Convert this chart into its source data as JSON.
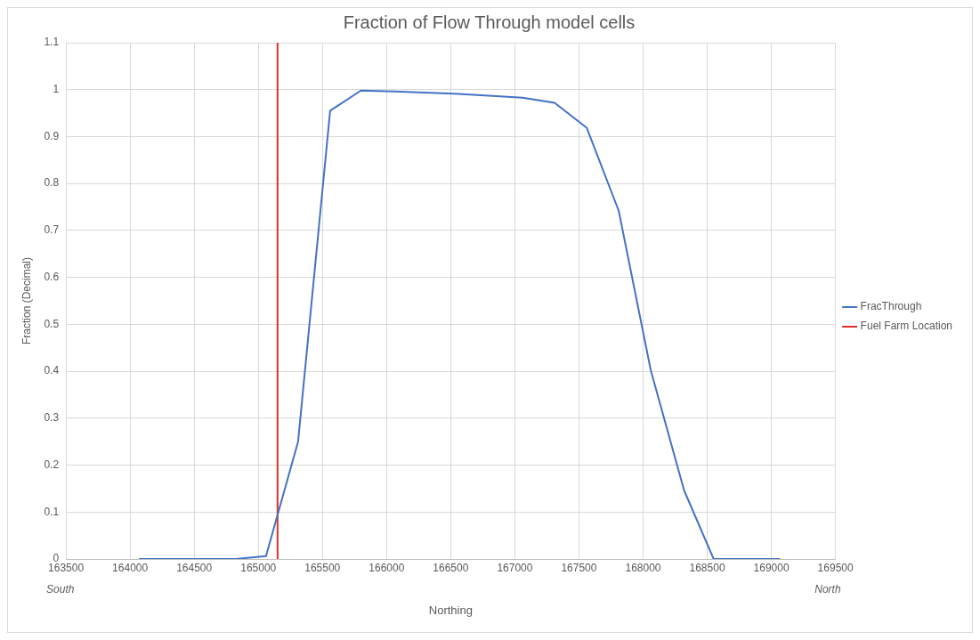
{
  "chart_data": {
    "type": "line",
    "title": "Fraction of Flow Through model cells",
    "xlabel": "Northing",
    "ylabel": "Fraction (Decimal)",
    "series": [
      {
        "name": "FracThrough",
        "color": "#4472c4",
        "x": [
          164070,
          164320,
          164570,
          164820,
          165060,
          165310,
          165560,
          165800,
          166060,
          166560,
          167060,
          167310,
          167560,
          167810,
          168060,
          168320,
          168550,
          169070
        ],
        "values": [
          0,
          0,
          0,
          0,
          0.006,
          0.25,
          0.955,
          0.998,
          0.996,
          0.991,
          0.983,
          0.972,
          0.919,
          0.742,
          0.402,
          0.146,
          0,
          0
        ]
      },
      {
        "name": "Fuel Farm Location",
        "color": "#e0302a",
        "x": [
          165150,
          165150
        ],
        "values": [
          0,
          1.1
        ]
      }
    ],
    "xlim": [
      163500,
      169500
    ],
    "xticks": [
      163500,
      164000,
      164500,
      165000,
      165500,
      166000,
      166500,
      167000,
      167500,
      168000,
      168500,
      169000,
      169500
    ],
    "ylim": [
      0,
      1.1
    ],
    "yticks": [
      0,
      0.1,
      0.2,
      0.3,
      0.4,
      0.5,
      0.6,
      0.7,
      0.8,
      0.9,
      1,
      1.1
    ],
    "annotations": [
      "South",
      "North"
    ],
    "grid": true,
    "legend": "right",
    "marker": "none",
    "line_style": "solid"
  }
}
